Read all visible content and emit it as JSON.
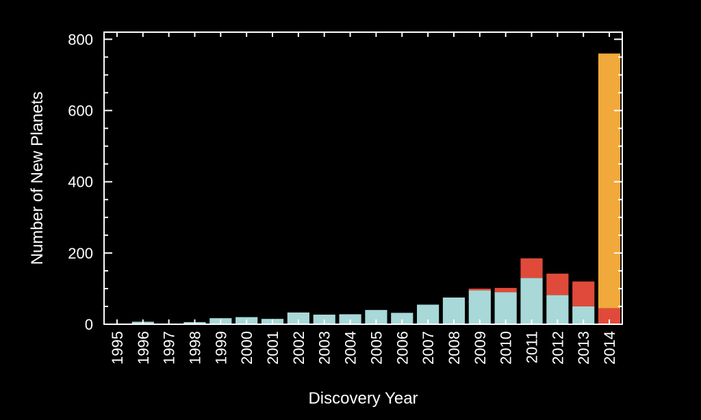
{
  "chart_data": {
    "type": "bar",
    "stacked": true,
    "title": "",
    "xlabel": "Discovery Year",
    "ylabel": "Number of New Planets",
    "ylim": [
      0,
      820
    ],
    "yticks": [
      "0",
      "200",
      "400",
      "600",
      "800"
    ],
    "grid": false,
    "legend": "none",
    "categories": [
      "1995",
      "1996",
      "1997",
      "1998",
      "1999",
      "2000",
      "2001",
      "2002",
      "2003",
      "2004",
      "2005",
      "2006",
      "2007",
      "2008",
      "2009",
      "2010",
      "2011",
      "2012",
      "2013",
      "2014"
    ],
    "series": [
      {
        "color": "#a8d8d8",
        "values": [
          1,
          7,
          1,
          6,
          17,
          20,
          15,
          33,
          27,
          28,
          40,
          32,
          55,
          75,
          95,
          90,
          130,
          82,
          50,
          0
        ]
      },
      {
        "color": "#e04a3a",
        "values": [
          0,
          0,
          0,
          0,
          0,
          0,
          0,
          0,
          0,
          0,
          0,
          0,
          0,
          0,
          5,
          12,
          55,
          60,
          70,
          45
        ]
      },
      {
        "color": "#f0a93a",
        "values": [
          0,
          0,
          0,
          0,
          0,
          0,
          0,
          0,
          0,
          0,
          0,
          0,
          0,
          0,
          0,
          0,
          0,
          0,
          0,
          715
        ]
      }
    ]
  }
}
